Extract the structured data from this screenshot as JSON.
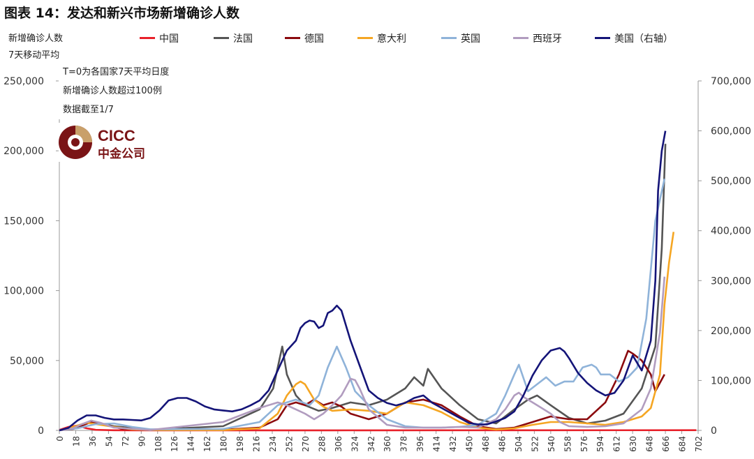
{
  "title": "图表 14：发达和新兴市场新增确诊人数",
  "left_axis_label_1": "新增确诊人数",
  "left_axis_label_2": "7天移动平均",
  "annotations": [
    "T=0为各国家7天平均日度",
    "新增确诊人数超过100例",
    "数据截至1/7"
  ],
  "logo": {
    "text_en": "CICC",
    "text_cn": "中金公司",
    "color": "#7a1416"
  },
  "chart_data": {
    "type": "line",
    "title": "图表 14：发达和新兴市场新增确诊人数",
    "xlabel": "",
    "ylabel": "新增确诊人数 7天移动平均",
    "y2label": "美国（右轴）",
    "xlim": [
      0,
      702
    ],
    "ylim": [
      0,
      250000
    ],
    "y2lim": [
      0,
      700000
    ],
    "x_ticks": [
      0,
      18,
      36,
      54,
      72,
      90,
      108,
      126,
      144,
      162,
      180,
      198,
      216,
      234,
      252,
      270,
      288,
      306,
      324,
      342,
      360,
      378,
      396,
      414,
      432,
      450,
      468,
      486,
      504,
      522,
      540,
      558,
      576,
      594,
      612,
      630,
      648,
      666,
      684,
      702
    ],
    "y_ticks": [
      0,
      50000,
      100000,
      150000,
      200000,
      250000
    ],
    "y_tick_labels": [
      "0",
      "50,000",
      "100,000",
      "150,000",
      "200,000",
      "250,000"
    ],
    "y2_ticks": [
      0,
      100000,
      200000,
      300000,
      400000,
      500000,
      600000,
      700000
    ],
    "y2_tick_labels": [
      "0",
      "100,000",
      "200,000",
      "300,000",
      "400,000",
      "500,000",
      "600,000",
      "700,000"
    ],
    "series": [
      {
        "name": "中国",
        "color": "#e8212a",
        "axis": "left",
        "x": [
          0,
          10,
          20,
          30,
          40,
          60,
          100,
          300,
          500,
          700
        ],
        "values": [
          300,
          2500,
          3500,
          1500,
          400,
          100,
          50,
          60,
          80,
          150
        ]
      },
      {
        "name": "法国",
        "color": "#555555",
        "axis": "left",
        "x": [
          0,
          15,
          25,
          35,
          45,
          60,
          100,
          180,
          220,
          235,
          240,
          245,
          250,
          260,
          270,
          285,
          300,
          320,
          340,
          360,
          380,
          390,
          400,
          405,
          420,
          440,
          460,
          480,
          500,
          515,
          525,
          540,
          560,
          580,
          600,
          620,
          640,
          655,
          662,
          666
        ],
        "values": [
          100,
          1500,
          4000,
          7000,
          5000,
          3000,
          500,
          3000,
          15000,
          30000,
          45000,
          60000,
          40000,
          25000,
          18000,
          14000,
          16000,
          20000,
          18000,
          22000,
          30000,
          38000,
          32000,
          44000,
          30000,
          18000,
          8000,
          5000,
          15000,
          22000,
          25000,
          18000,
          9000,
          5000,
          7000,
          12000,
          30000,
          60000,
          130000,
          205000
        ]
      },
      {
        "name": "德国",
        "color": "#8b0a0e",
        "axis": "left",
        "x": [
          0,
          15,
          25,
          35,
          50,
          70,
          100,
          180,
          220,
          240,
          250,
          260,
          270,
          280,
          290,
          300,
          310,
          320,
          340,
          360,
          380,
          400,
          420,
          440,
          460,
          480,
          500,
          520,
          540,
          560,
          580,
          600,
          615,
          625,
          630,
          640,
          650,
          655,
          665
        ],
        "values": [
          100,
          1000,
          3500,
          6000,
          4000,
          1000,
          300,
          500,
          2000,
          8000,
          18000,
          20000,
          18000,
          22000,
          18000,
          20000,
          17000,
          12000,
          8000,
          12000,
          20000,
          22000,
          18000,
          10000,
          3000,
          1000,
          2000,
          6000,
          10000,
          8000,
          8000,
          20000,
          40000,
          57000,
          55000,
          50000,
          40000,
          28000,
          40000
        ]
      },
      {
        "name": "意大利",
        "color": "#f5a623",
        "axis": "left",
        "x": [
          0,
          10,
          20,
          30,
          40,
          60,
          80,
          100,
          180,
          220,
          240,
          250,
          260,
          265,
          270,
          280,
          290,
          300,
          320,
          340,
          360,
          380,
          400,
          420,
          440,
          460,
          480,
          500,
          520,
          540,
          560,
          580,
          600,
          620,
          640,
          650,
          660,
          665,
          670,
          675
        ],
        "values": [
          100,
          1500,
          3500,
          5500,
          4500,
          2500,
          800,
          300,
          200,
          1500,
          12000,
          25000,
          33000,
          35000,
          33000,
          22000,
          17000,
          14000,
          15000,
          14000,
          12000,
          20000,
          18000,
          13000,
          6000,
          2000,
          600,
          1500,
          4000,
          6000,
          6000,
          5000,
          4000,
          6000,
          10000,
          16000,
          40000,
          90000,
          120000,
          142000
        ]
      },
      {
        "name": "英国",
        "color": "#8fb3d9",
        "axis": "left",
        "x": [
          0,
          20,
          40,
          60,
          80,
          100,
          180,
          220,
          240,
          260,
          275,
          285,
          295,
          305,
          315,
          325,
          340,
          360,
          380,
          400,
          420,
          440,
          460,
          480,
          490,
          500,
          505,
          515,
          525,
          535,
          545,
          555,
          565,
          575,
          585,
          590,
          595,
          605,
          615,
          625,
          635,
          645,
          655,
          665
        ],
        "values": [
          100,
          1500,
          4500,
          5000,
          2500,
          800,
          1000,
          6000,
          18000,
          22000,
          18000,
          25000,
          45000,
          60000,
          45000,
          28000,
          18000,
          8000,
          3000,
          2000,
          2000,
          2500,
          4000,
          12000,
          25000,
          40000,
          47000,
          28000,
          33000,
          38000,
          32000,
          35000,
          35000,
          45000,
          47000,
          45000,
          40000,
          40000,
          35000,
          38000,
          45000,
          80000,
          150000,
          180000
        ]
      },
      {
        "name": "西班牙",
        "color": "#b19cbf",
        "axis": "left",
        "x": [
          0,
          15,
          25,
          35,
          45,
          60,
          100,
          180,
          220,
          240,
          250,
          260,
          270,
          280,
          290,
          300,
          310,
          320,
          325,
          330,
          340,
          360,
          380,
          400,
          420,
          440,
          460,
          480,
          490,
          500,
          505,
          510,
          520,
          530,
          540,
          550,
          560,
          580,
          600,
          620,
          640,
          650,
          660,
          665
        ],
        "values": [
          100,
          1500,
          4500,
          7000,
          5500,
          2000,
          300,
          6000,
          16000,
          20000,
          18000,
          15000,
          12000,
          8000,
          12000,
          18000,
          25000,
          37000,
          36000,
          30000,
          15000,
          4000,
          2000,
          2000,
          2000,
          2500,
          2000,
          8000,
          15000,
          25000,
          27000,
          24000,
          20000,
          16000,
          12000,
          6000,
          3000,
          2500,
          3000,
          5000,
          15000,
          30000,
          70000,
          110000
        ]
      },
      {
        "name": "美国（右轴）",
        "color": "#141478",
        "axis": "right",
        "x": [
          0,
          10,
          20,
          30,
          40,
          50,
          60,
          70,
          80,
          90,
          100,
          110,
          120,
          130,
          140,
          150,
          160,
          170,
          180,
          190,
          200,
          210,
          220,
          230,
          240,
          250,
          260,
          265,
          270,
          275,
          280,
          285,
          290,
          295,
          300,
          305,
          310,
          320,
          330,
          340,
          350,
          360,
          370,
          380,
          390,
          400,
          410,
          420,
          430,
          440,
          450,
          460,
          470,
          480,
          490,
          500,
          510,
          520,
          530,
          540,
          550,
          555,
          560,
          570,
          580,
          590,
          600,
          610,
          620,
          630,
          640,
          650,
          655,
          658,
          662,
          666
        ],
        "values": [
          0,
          5000,
          20000,
          30000,
          30000,
          25000,
          22000,
          22000,
          21000,
          20000,
          25000,
          40000,
          60000,
          65000,
          65000,
          58000,
          48000,
          42000,
          40000,
          38000,
          42000,
          50000,
          60000,
          80000,
          120000,
          160000,
          180000,
          205000,
          215000,
          220000,
          218000,
          205000,
          210000,
          235000,
          240000,
          250000,
          240000,
          180000,
          130000,
          80000,
          65000,
          55000,
          50000,
          55000,
          65000,
          70000,
          55000,
          45000,
          35000,
          25000,
          15000,
          12000,
          12000,
          18000,
          25000,
          38000,
          70000,
          110000,
          140000,
          160000,
          165000,
          158000,
          145000,
          115000,
          95000,
          80000,
          70000,
          75000,
          100000,
          150000,
          120000,
          180000,
          300000,
          480000,
          560000,
          600000
        ]
      }
    ]
  }
}
